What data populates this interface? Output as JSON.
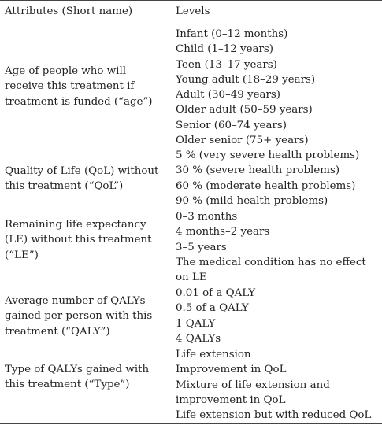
{
  "header": {
    "attributes": "Attributes (Short name)",
    "levels": "Levels"
  },
  "rows": [
    {
      "attribute": "Age of people who will\nreceive this treatment if\ntreatment is funded (“age”)",
      "levels": [
        "Infant (0–12 months)",
        "Child (1–12 years)",
        "Teen (13–17 years)",
        "Young adult (18–29 years)",
        "Adult (30–49 years)",
        "Older adult (50–59 years)",
        "Senior (60–74 years)",
        "Older senior (75+ years)"
      ]
    },
    {
      "attribute": "Quality of Life (QoL) without\nthis treatment (“QoL”)",
      "levels": [
        "5 % (very severe health problems)",
        "30 % (severe health problems)",
        "60 % (moderate health problems)",
        "90 % (mild health problems)"
      ]
    },
    {
      "attribute": "Remaining life expectancy\n(LE) without this treatment\n(“LE”)",
      "levels": [
        "0–3 months",
        "4 months–2 years",
        "3–5 years",
        "The medical condition has no effect\non LE"
      ]
    },
    {
      "attribute": "Average number of QALYs\ngained per person with this\ntreatment (“QALY”)",
      "levels": [
        "0.01 of a QALY",
        "0.5 of a QALY",
        "1 QALY",
        "4 QALYs"
      ]
    },
    {
      "attribute": "Type of QALYs gained with\nthis treatment (“Type”)",
      "levels": [
        "Life extension",
        "Improvement in QoL",
        "Mixture of life extension and\nimprovement in QoL",
        "Life extension but with reduced QoL"
      ]
    }
  ]
}
